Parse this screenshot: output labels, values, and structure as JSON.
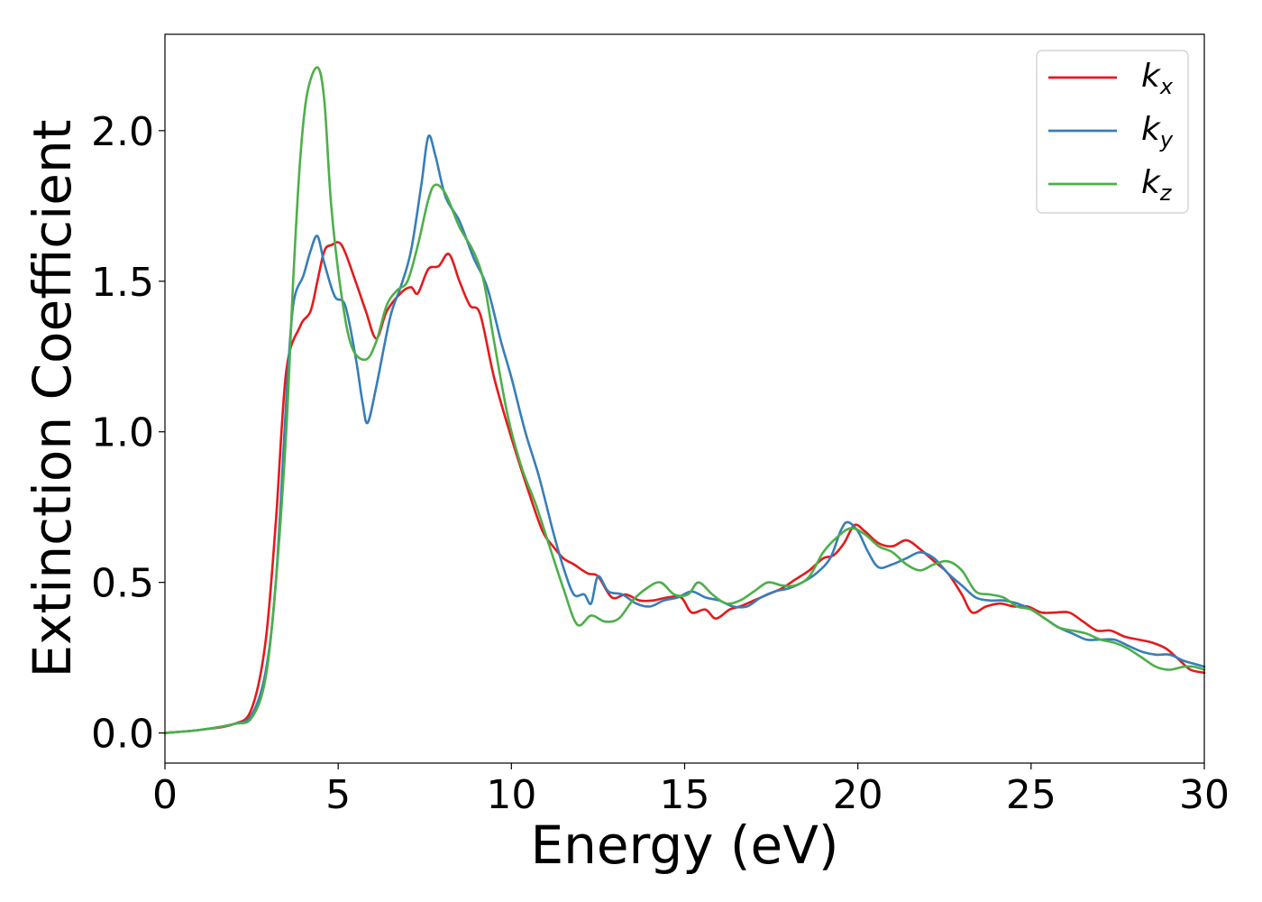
{
  "chart_data": {
    "type": "line",
    "title": "",
    "xlabel": "Energy (eV)",
    "ylabel": "Extinction Coefficient",
    "xlim": [
      0,
      30
    ],
    "ylim": [
      -0.1,
      2.32
    ],
    "xticks": [
      {
        "value": 0,
        "label": "0"
      },
      {
        "value": 5,
        "label": "5"
      },
      {
        "value": 10,
        "label": "10"
      },
      {
        "value": 15,
        "label": "15"
      },
      {
        "value": 20,
        "label": "20"
      },
      {
        "value": 25,
        "label": "25"
      },
      {
        "value": 30,
        "label": "30"
      }
    ],
    "yticks": [
      {
        "value": 0.0,
        "label": "0.0"
      },
      {
        "value": 0.5,
        "label": "0.5"
      },
      {
        "value": 1.0,
        "label": "1.0"
      },
      {
        "value": 1.5,
        "label": "1.5"
      },
      {
        "value": 2.0,
        "label": "2.0"
      }
    ],
    "grid": false,
    "legend_position": "top-right",
    "series": [
      {
        "name": "k",
        "subscript": "x",
        "color": "#e41a1c",
        "points": [
          [
            0,
            0
          ],
          [
            1,
            0.01
          ],
          [
            2,
            0.03
          ],
          [
            2.5,
            0.08
          ],
          [
            2.9,
            0.3
          ],
          [
            3.2,
            0.7
          ],
          [
            3.5,
            1.2
          ],
          [
            3.9,
            1.35
          ],
          [
            4.2,
            1.4
          ],
          [
            4.4,
            1.5
          ],
          [
            4.6,
            1.6
          ],
          [
            4.8,
            1.62
          ],
          [
            5.1,
            1.62
          ],
          [
            5.5,
            1.5
          ],
          [
            5.8,
            1.4
          ],
          [
            6.1,
            1.31
          ],
          [
            6.4,
            1.4
          ],
          [
            6.8,
            1.46
          ],
          [
            7.1,
            1.48
          ],
          [
            7.3,
            1.46
          ],
          [
            7.6,
            1.54
          ],
          [
            7.9,
            1.55
          ],
          [
            8.2,
            1.59
          ],
          [
            8.5,
            1.5
          ],
          [
            8.8,
            1.42
          ],
          [
            9.1,
            1.39
          ],
          [
            9.5,
            1.18
          ],
          [
            10,
            0.98
          ],
          [
            10.5,
            0.8
          ],
          [
            10.9,
            0.67
          ],
          [
            11.2,
            0.62
          ],
          [
            11.5,
            0.58
          ],
          [
            11.8,
            0.56
          ],
          [
            12.2,
            0.53
          ],
          [
            12.5,
            0.52
          ],
          [
            12.9,
            0.45
          ],
          [
            13.3,
            0.46
          ],
          [
            13.7,
            0.44
          ],
          [
            14.1,
            0.44
          ],
          [
            14.5,
            0.45
          ],
          [
            14.9,
            0.45
          ],
          [
            15.2,
            0.4
          ],
          [
            15.6,
            0.41
          ],
          [
            15.9,
            0.38
          ],
          [
            16.3,
            0.41
          ],
          [
            16.6,
            0.42
          ],
          [
            17,
            0.44
          ],
          [
            17.4,
            0.46
          ],
          [
            17.8,
            0.48
          ],
          [
            18.2,
            0.51
          ],
          [
            18.6,
            0.54
          ],
          [
            19,
            0.58
          ],
          [
            19.3,
            0.59
          ],
          [
            19.6,
            0.63
          ],
          [
            19.9,
            0.69
          ],
          [
            20.2,
            0.67
          ],
          [
            20.6,
            0.63
          ],
          [
            21,
            0.62
          ],
          [
            21.4,
            0.64
          ],
          [
            21.8,
            0.61
          ],
          [
            22.2,
            0.57
          ],
          [
            22.6,
            0.53
          ],
          [
            23,
            0.46
          ],
          [
            23.3,
            0.4
          ],
          [
            23.7,
            0.42
          ],
          [
            24.1,
            0.43
          ],
          [
            24.5,
            0.42
          ],
          [
            24.9,
            0.42
          ],
          [
            25.3,
            0.4
          ],
          [
            25.7,
            0.4
          ],
          [
            26.1,
            0.4
          ],
          [
            26.5,
            0.37
          ],
          [
            26.9,
            0.34
          ],
          [
            27.3,
            0.34
          ],
          [
            27.7,
            0.32
          ],
          [
            28.1,
            0.31
          ],
          [
            28.5,
            0.3
          ],
          [
            28.9,
            0.28
          ],
          [
            29.3,
            0.24
          ],
          [
            29.6,
            0.21
          ],
          [
            30,
            0.2
          ]
        ]
      },
      {
        "name": "k",
        "subscript": "y",
        "color": "#377eb8",
        "points": [
          [
            0,
            0
          ],
          [
            1,
            0.01
          ],
          [
            2,
            0.03
          ],
          [
            2.5,
            0.06
          ],
          [
            2.9,
            0.2
          ],
          [
            3.2,
            0.5
          ],
          [
            3.5,
            1.1
          ],
          [
            3.7,
            1.42
          ],
          [
            4,
            1.52
          ],
          [
            4.2,
            1.6
          ],
          [
            4.4,
            1.65
          ],
          [
            4.6,
            1.56
          ],
          [
            4.9,
            1.45
          ],
          [
            5.2,
            1.42
          ],
          [
            5.5,
            1.25
          ],
          [
            5.7,
            1.1
          ],
          [
            5.85,
            1.03
          ],
          [
            6.1,
            1.15
          ],
          [
            6.5,
            1.38
          ],
          [
            6.8,
            1.48
          ],
          [
            7.1,
            1.6
          ],
          [
            7.4,
            1.82
          ],
          [
            7.6,
            1.98
          ],
          [
            7.8,
            1.92
          ],
          [
            8.1,
            1.78
          ],
          [
            8.5,
            1.7
          ],
          [
            8.9,
            1.58
          ],
          [
            9.3,
            1.48
          ],
          [
            9.7,
            1.3
          ],
          [
            10,
            1.18
          ],
          [
            10.4,
            1.0
          ],
          [
            10.8,
            0.85
          ],
          [
            11.2,
            0.67
          ],
          [
            11.5,
            0.55
          ],
          [
            11.8,
            0.46
          ],
          [
            12.1,
            0.46
          ],
          [
            12.3,
            0.43
          ],
          [
            12.5,
            0.52
          ],
          [
            12.8,
            0.47
          ],
          [
            13.2,
            0.46
          ],
          [
            13.6,
            0.43
          ],
          [
            14,
            0.42
          ],
          [
            14.4,
            0.44
          ],
          [
            14.8,
            0.45
          ],
          [
            15.2,
            0.47
          ],
          [
            15.6,
            0.45
          ],
          [
            16,
            0.44
          ],
          [
            16.4,
            0.42
          ],
          [
            16.8,
            0.42
          ],
          [
            17.2,
            0.45
          ],
          [
            17.6,
            0.47
          ],
          [
            18,
            0.48
          ],
          [
            18.4,
            0.5
          ],
          [
            18.8,
            0.53
          ],
          [
            19.2,
            0.58
          ],
          [
            19.5,
            0.67
          ],
          [
            19.7,
            0.7
          ],
          [
            20,
            0.67
          ],
          [
            20.3,
            0.6
          ],
          [
            20.6,
            0.55
          ],
          [
            21,
            0.56
          ],
          [
            21.4,
            0.58
          ],
          [
            21.8,
            0.6
          ],
          [
            22.2,
            0.58
          ],
          [
            22.6,
            0.53
          ],
          [
            23,
            0.49
          ],
          [
            23.4,
            0.45
          ],
          [
            23.8,
            0.44
          ],
          [
            24.2,
            0.44
          ],
          [
            24.6,
            0.43
          ],
          [
            25,
            0.41
          ],
          [
            25.4,
            0.38
          ],
          [
            25.8,
            0.35
          ],
          [
            26.2,
            0.33
          ],
          [
            26.6,
            0.31
          ],
          [
            27,
            0.31
          ],
          [
            27.4,
            0.31
          ],
          [
            27.8,
            0.29
          ],
          [
            28.2,
            0.27
          ],
          [
            28.6,
            0.26
          ],
          [
            29,
            0.26
          ],
          [
            29.4,
            0.24
          ],
          [
            29.7,
            0.23
          ],
          [
            30,
            0.22
          ]
        ]
      },
      {
        "name": "k",
        "subscript": "z",
        "color": "#4daf4a",
        "points": [
          [
            0,
            0
          ],
          [
            1,
            0.01
          ],
          [
            2,
            0.03
          ],
          [
            2.5,
            0.05
          ],
          [
            2.9,
            0.18
          ],
          [
            3.2,
            0.5
          ],
          [
            3.5,
            1.0
          ],
          [
            3.7,
            1.5
          ],
          [
            3.9,
            1.9
          ],
          [
            4.1,
            2.12
          ],
          [
            4.4,
            2.21
          ],
          [
            4.6,
            2.1
          ],
          [
            4.8,
            1.75
          ],
          [
            5.1,
            1.45
          ],
          [
            5.4,
            1.28
          ],
          [
            5.8,
            1.24
          ],
          [
            6.1,
            1.3
          ],
          [
            6.4,
            1.42
          ],
          [
            6.7,
            1.47
          ],
          [
            7,
            1.5
          ],
          [
            7.3,
            1.62
          ],
          [
            7.6,
            1.77
          ],
          [
            7.8,
            1.82
          ],
          [
            8.1,
            1.79
          ],
          [
            8.5,
            1.68
          ],
          [
            8.9,
            1.6
          ],
          [
            9.2,
            1.5
          ],
          [
            9.5,
            1.3
          ],
          [
            9.9,
            1.05
          ],
          [
            10.3,
            0.88
          ],
          [
            10.7,
            0.76
          ],
          [
            11.1,
            0.62
          ],
          [
            11.5,
            0.48
          ],
          [
            11.9,
            0.36
          ],
          [
            12.3,
            0.39
          ],
          [
            12.7,
            0.37
          ],
          [
            13.1,
            0.38
          ],
          [
            13.5,
            0.44
          ],
          [
            13.9,
            0.48
          ],
          [
            14.3,
            0.5
          ],
          [
            14.7,
            0.46
          ],
          [
            15.1,
            0.46
          ],
          [
            15.4,
            0.5
          ],
          [
            15.8,
            0.46
          ],
          [
            16.2,
            0.43
          ],
          [
            16.6,
            0.44
          ],
          [
            17,
            0.47
          ],
          [
            17.4,
            0.5
          ],
          [
            17.8,
            0.49
          ],
          [
            18.2,
            0.49
          ],
          [
            18.6,
            0.52
          ],
          [
            19,
            0.6
          ],
          [
            19.4,
            0.65
          ],
          [
            19.8,
            0.68
          ],
          [
            20.2,
            0.66
          ],
          [
            20.6,
            0.62
          ],
          [
            21,
            0.6
          ],
          [
            21.4,
            0.56
          ],
          [
            21.8,
            0.54
          ],
          [
            22.2,
            0.56
          ],
          [
            22.6,
            0.57
          ],
          [
            23,
            0.54
          ],
          [
            23.4,
            0.47
          ],
          [
            23.8,
            0.46
          ],
          [
            24.2,
            0.45
          ],
          [
            24.6,
            0.42
          ],
          [
            25,
            0.41
          ],
          [
            25.4,
            0.38
          ],
          [
            25.8,
            0.35
          ],
          [
            26.2,
            0.34
          ],
          [
            26.6,
            0.33
          ],
          [
            27,
            0.31
          ],
          [
            27.4,
            0.3
          ],
          [
            27.8,
            0.28
          ],
          [
            28.2,
            0.25
          ],
          [
            28.6,
            0.22
          ],
          [
            29,
            0.21
          ],
          [
            29.4,
            0.22
          ],
          [
            29.7,
            0.22
          ],
          [
            30,
            0.21
          ]
        ]
      }
    ]
  }
}
